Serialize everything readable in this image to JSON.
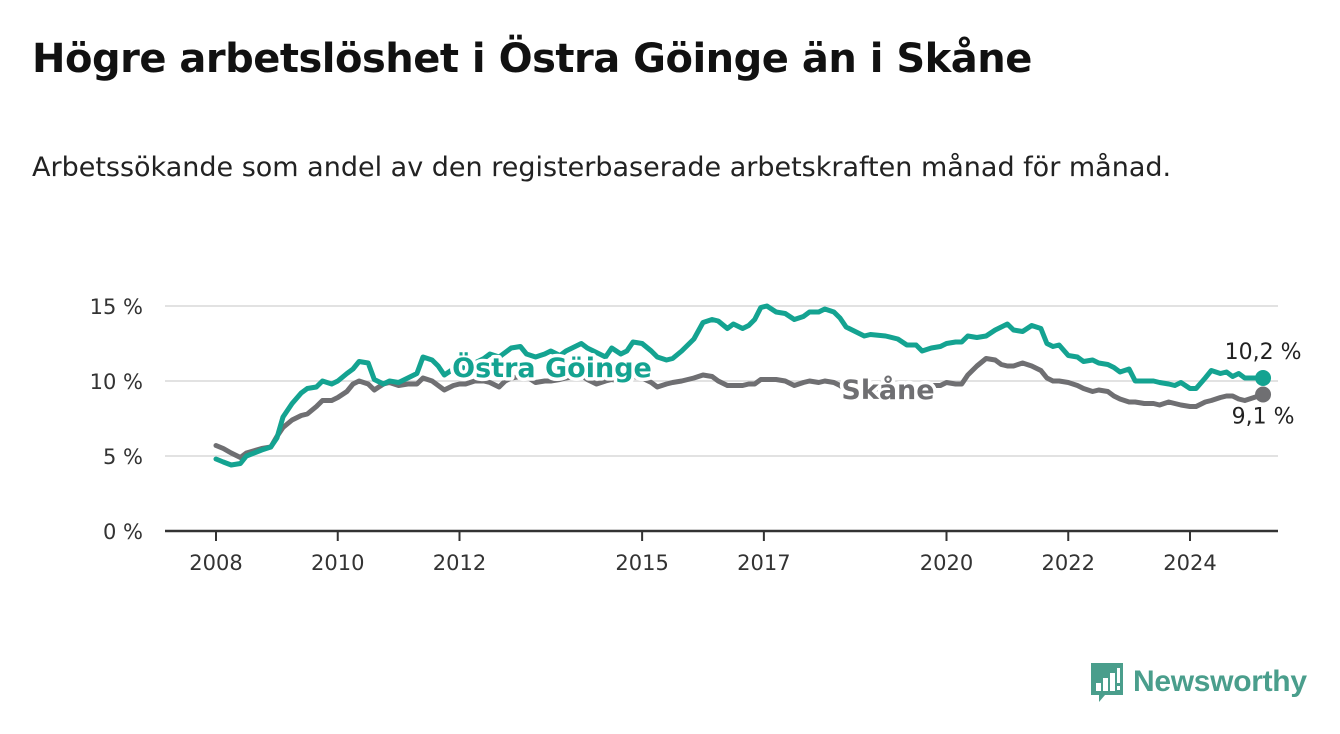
{
  "title": "Högre arbetslöshet i Östra Göinge än i Skåne",
  "subtitle": "Arbetssökande som andel av den registerbaserade arbetskraften månad för månad.",
  "brand": {
    "name": "Newsworthy",
    "icon": "newsworthy-logo-icon",
    "color": "#4a9e8c"
  },
  "colors": {
    "ostra": "#14a391",
    "skane": "#6f6f72",
    "grid": "#d9d9d9",
    "axis": "#333333"
  },
  "chart_data": {
    "type": "line",
    "title": "Högre arbetslöshet i Östra Göinge än i Skåne",
    "xlabel": "",
    "ylabel": "",
    "xlim": [
      2008,
      2025.8
    ],
    "ylim": [
      0,
      15
    ],
    "yticks": [
      {
        "value": 0,
        "label": "0 %"
      },
      {
        "value": 5,
        "label": "5 %"
      },
      {
        "value": 10,
        "label": "10 %"
      },
      {
        "value": 15,
        "label": "15 %"
      }
    ],
    "xticks": [
      {
        "value": 2008,
        "label": "2008"
      },
      {
        "value": 2010,
        "label": "2010"
      },
      {
        "value": 2012,
        "label": "2012"
      },
      {
        "value": 2015,
        "label": "2015"
      },
      {
        "value": 2017,
        "label": "2017"
      },
      {
        "value": 2020,
        "label": "2020"
      },
      {
        "value": 2022,
        "label": "2022"
      },
      {
        "value": 2024,
        "label": "2024"
      }
    ],
    "series": [
      {
        "name": "Östra Göinge",
        "label": "Östra Göinge",
        "end_label": "10,2 %",
        "points": [
          [
            2008.0,
            4.8
          ],
          [
            2008.12,
            4.6
          ],
          [
            2008.25,
            4.4
          ],
          [
            2008.4,
            4.5
          ],
          [
            2008.5,
            5.0
          ],
          [
            2008.75,
            5.4
          ],
          [
            2008.9,
            5.6
          ],
          [
            2009.0,
            6.2
          ],
          [
            2009.1,
            7.6
          ],
          [
            2009.25,
            8.5
          ],
          [
            2009.4,
            9.2
          ],
          [
            2009.5,
            9.5
          ],
          [
            2009.65,
            9.6
          ],
          [
            2009.75,
            10.0
          ],
          [
            2009.9,
            9.8
          ],
          [
            2010.0,
            10.0
          ],
          [
            2010.15,
            10.5
          ],
          [
            2010.25,
            10.8
          ],
          [
            2010.35,
            11.3
          ],
          [
            2010.5,
            11.2
          ],
          [
            2010.6,
            10.1
          ],
          [
            2010.75,
            9.8
          ],
          [
            2010.85,
            10.0
          ],
          [
            2011.0,
            9.9
          ],
          [
            2011.15,
            10.2
          ],
          [
            2011.3,
            10.5
          ],
          [
            2011.4,
            11.6
          ],
          [
            2011.55,
            11.4
          ],
          [
            2011.65,
            11.0
          ],
          [
            2011.75,
            10.4
          ],
          [
            2011.9,
            10.8
          ],
          [
            2012.0,
            11.0
          ],
          [
            2012.1,
            10.8
          ],
          [
            2012.25,
            11.2
          ],
          [
            2012.4,
            11.5
          ],
          [
            2012.5,
            11.8
          ],
          [
            2012.65,
            11.6
          ],
          [
            2012.75,
            11.9
          ],
          [
            2012.85,
            12.2
          ],
          [
            2013.0,
            12.3
          ],
          [
            2013.1,
            11.8
          ],
          [
            2013.25,
            11.6
          ],
          [
            2013.4,
            11.8
          ],
          [
            2013.5,
            12.0
          ],
          [
            2013.65,
            11.7
          ],
          [
            2013.75,
            12.0
          ],
          [
            2014.0,
            12.5
          ],
          [
            2014.1,
            12.2
          ],
          [
            2014.25,
            11.9
          ],
          [
            2014.4,
            11.6
          ],
          [
            2014.5,
            12.2
          ],
          [
            2014.65,
            11.8
          ],
          [
            2014.75,
            12.0
          ],
          [
            2014.85,
            12.6
          ],
          [
            2015.0,
            12.5
          ],
          [
            2015.15,
            12.0
          ],
          [
            2015.25,
            11.6
          ],
          [
            2015.4,
            11.4
          ],
          [
            2015.5,
            11.5
          ],
          [
            2015.65,
            12.0
          ],
          [
            2015.75,
            12.4
          ],
          [
            2015.85,
            12.8
          ],
          [
            2016.0,
            13.9
          ],
          [
            2016.15,
            14.1
          ],
          [
            2016.25,
            14.0
          ],
          [
            2016.4,
            13.5
          ],
          [
            2016.5,
            13.8
          ],
          [
            2016.65,
            13.5
          ],
          [
            2016.75,
            13.7
          ],
          [
            2016.85,
            14.1
          ],
          [
            2016.95,
            14.9
          ],
          [
            2017.05,
            15.0
          ],
          [
            2017.2,
            14.6
          ],
          [
            2017.35,
            14.5
          ],
          [
            2017.5,
            14.1
          ],
          [
            2017.65,
            14.3
          ],
          [
            2017.75,
            14.6
          ],
          [
            2017.9,
            14.6
          ],
          [
            2018.0,
            14.8
          ],
          [
            2018.15,
            14.6
          ],
          [
            2018.25,
            14.2
          ],
          [
            2018.35,
            13.6
          ],
          [
            2018.5,
            13.3
          ],
          [
            2018.65,
            13.0
          ],
          [
            2018.75,
            13.1
          ],
          [
            2019.0,
            13.0
          ],
          [
            2019.2,
            12.8
          ],
          [
            2019.35,
            12.4
          ],
          [
            2019.5,
            12.4
          ],
          [
            2019.6,
            12.0
          ],
          [
            2019.75,
            12.2
          ],
          [
            2019.9,
            12.3
          ],
          [
            2020.0,
            12.5
          ],
          [
            2020.15,
            12.6
          ],
          [
            2020.25,
            12.6
          ],
          [
            2020.35,
            13.0
          ],
          [
            2020.5,
            12.9
          ],
          [
            2020.65,
            13.0
          ],
          [
            2020.8,
            13.4
          ],
          [
            2020.9,
            13.6
          ],
          [
            2021.0,
            13.8
          ],
          [
            2021.1,
            13.4
          ],
          [
            2021.25,
            13.3
          ],
          [
            2021.4,
            13.7
          ],
          [
            2021.55,
            13.5
          ],
          [
            2021.65,
            12.5
          ],
          [
            2021.75,
            12.3
          ],
          [
            2021.85,
            12.4
          ],
          [
            2022.0,
            11.7
          ],
          [
            2022.15,
            11.6
          ],
          [
            2022.25,
            11.3
          ],
          [
            2022.4,
            11.4
          ],
          [
            2022.5,
            11.2
          ],
          [
            2022.65,
            11.1
          ],
          [
            2022.75,
            10.9
          ],
          [
            2022.85,
            10.6
          ],
          [
            2023.0,
            10.8
          ],
          [
            2023.1,
            10.0
          ],
          [
            2023.25,
            10.0
          ],
          [
            2023.4,
            10.0
          ],
          [
            2023.5,
            9.9
          ],
          [
            2023.65,
            9.8
          ],
          [
            2023.75,
            9.7
          ],
          [
            2023.85,
            9.9
          ],
          [
            2024.0,
            9.5
          ],
          [
            2024.1,
            9.5
          ],
          [
            2024.25,
            10.2
          ],
          [
            2024.35,
            10.7
          ],
          [
            2024.5,
            10.5
          ],
          [
            2024.6,
            10.6
          ],
          [
            2024.7,
            10.3
          ],
          [
            2024.8,
            10.5
          ],
          [
            2024.9,
            10.2
          ],
          [
            2025.2,
            10.2
          ]
        ]
      },
      {
        "name": "Skåne",
        "label": "Skåne",
        "end_label": "9,1 %",
        "points": [
          [
            2008.0,
            5.7
          ],
          [
            2008.12,
            5.5
          ],
          [
            2008.25,
            5.2
          ],
          [
            2008.4,
            4.9
          ],
          [
            2008.5,
            5.2
          ],
          [
            2008.75,
            5.5
          ],
          [
            2008.9,
            5.6
          ],
          [
            2009.0,
            6.3
          ],
          [
            2009.1,
            6.9
          ],
          [
            2009.25,
            7.4
          ],
          [
            2009.4,
            7.7
          ],
          [
            2009.5,
            7.8
          ],
          [
            2009.65,
            8.3
          ],
          [
            2009.75,
            8.7
          ],
          [
            2009.9,
            8.7
          ],
          [
            2010.0,
            8.9
          ],
          [
            2010.15,
            9.3
          ],
          [
            2010.25,
            9.8
          ],
          [
            2010.35,
            10.0
          ],
          [
            2010.5,
            9.8
          ],
          [
            2010.6,
            9.4
          ],
          [
            2010.75,
            9.8
          ],
          [
            2010.85,
            9.9
          ],
          [
            2011.0,
            9.7
          ],
          [
            2011.15,
            9.8
          ],
          [
            2011.3,
            9.8
          ],
          [
            2011.4,
            10.2
          ],
          [
            2011.55,
            10.0
          ],
          [
            2011.65,
            9.7
          ],
          [
            2011.75,
            9.4
          ],
          [
            2011.9,
            9.7
          ],
          [
            2012.0,
            9.8
          ],
          [
            2012.1,
            9.8
          ],
          [
            2012.25,
            10.0
          ],
          [
            2012.4,
            10.0
          ],
          [
            2012.5,
            9.9
          ],
          [
            2012.65,
            9.6
          ],
          [
            2012.75,
            10.0
          ],
          [
            2012.85,
            10.2
          ],
          [
            2013.0,
            10.3
          ],
          [
            2013.1,
            10.3
          ],
          [
            2013.25,
            9.9
          ],
          [
            2013.4,
            10.0
          ],
          [
            2013.5,
            10.0
          ],
          [
            2013.65,
            10.1
          ],
          [
            2013.75,
            10.2
          ],
          [
            2014.0,
            10.4
          ],
          [
            2014.1,
            10.1
          ],
          [
            2014.25,
            9.8
          ],
          [
            2014.4,
            10.0
          ],
          [
            2014.5,
            10.1
          ],
          [
            2014.65,
            10.0
          ],
          [
            2014.75,
            10.1
          ],
          [
            2014.85,
            10.3
          ],
          [
            2015.0,
            10.2
          ],
          [
            2015.15,
            9.9
          ],
          [
            2015.25,
            9.6
          ],
          [
            2015.4,
            9.8
          ],
          [
            2015.5,
            9.9
          ],
          [
            2015.65,
            10.0
          ],
          [
            2015.75,
            10.1
          ],
          [
            2015.85,
            10.2
          ],
          [
            2016.0,
            10.4
          ],
          [
            2016.15,
            10.3
          ],
          [
            2016.25,
            10.0
          ],
          [
            2016.4,
            9.7
          ],
          [
            2016.5,
            9.7
          ],
          [
            2016.65,
            9.7
          ],
          [
            2016.75,
            9.8
          ],
          [
            2016.85,
            9.8
          ],
          [
            2016.95,
            10.1
          ],
          [
            2017.05,
            10.1
          ],
          [
            2017.2,
            10.1
          ],
          [
            2017.35,
            10.0
          ],
          [
            2017.5,
            9.7
          ],
          [
            2017.65,
            9.9
          ],
          [
            2017.75,
            10.0
          ],
          [
            2017.9,
            9.9
          ],
          [
            2018.0,
            10.0
          ],
          [
            2018.15,
            9.9
          ],
          [
            2018.25,
            9.7
          ],
          [
            2018.35,
            9.4
          ],
          [
            2018.5,
            9.3
          ],
          [
            2018.65,
            9.3
          ],
          [
            2018.75,
            9.4
          ],
          [
            2019.0,
            9.3
          ],
          [
            2019.2,
            9.2
          ],
          [
            2019.35,
            9.3
          ],
          [
            2019.5,
            9.5
          ],
          [
            2019.6,
            9.6
          ],
          [
            2019.75,
            9.7
          ],
          [
            2019.9,
            9.7
          ],
          [
            2020.0,
            9.9
          ],
          [
            2020.15,
            9.8
          ],
          [
            2020.25,
            9.8
          ],
          [
            2020.35,
            10.4
          ],
          [
            2020.5,
            11.0
          ],
          [
            2020.65,
            11.5
          ],
          [
            2020.8,
            11.4
          ],
          [
            2020.9,
            11.1
          ],
          [
            2021.0,
            11.0
          ],
          [
            2021.1,
            11.0
          ],
          [
            2021.25,
            11.2
          ],
          [
            2021.4,
            11.0
          ],
          [
            2021.55,
            10.7
          ],
          [
            2021.65,
            10.2
          ],
          [
            2021.75,
            10.0
          ],
          [
            2021.85,
            10.0
          ],
          [
            2022.0,
            9.9
          ],
          [
            2022.15,
            9.7
          ],
          [
            2022.25,
            9.5
          ],
          [
            2022.4,
            9.3
          ],
          [
            2022.5,
            9.4
          ],
          [
            2022.65,
            9.3
          ],
          [
            2022.75,
            9.0
          ],
          [
            2022.85,
            8.8
          ],
          [
            2023.0,
            8.6
          ],
          [
            2023.1,
            8.6
          ],
          [
            2023.25,
            8.5
          ],
          [
            2023.4,
            8.5
          ],
          [
            2023.5,
            8.4
          ],
          [
            2023.65,
            8.6
          ],
          [
            2023.75,
            8.5
          ],
          [
            2023.85,
            8.4
          ],
          [
            2024.0,
            8.3
          ],
          [
            2024.1,
            8.3
          ],
          [
            2024.25,
            8.6
          ],
          [
            2024.35,
            8.7
          ],
          [
            2024.5,
            8.9
          ],
          [
            2024.6,
            9.0
          ],
          [
            2024.7,
            9.0
          ],
          [
            2024.8,
            8.8
          ],
          [
            2024.9,
            8.7
          ],
          [
            2025.2,
            9.1
          ]
        ]
      }
    ],
    "legend": "inline labels on lines"
  }
}
